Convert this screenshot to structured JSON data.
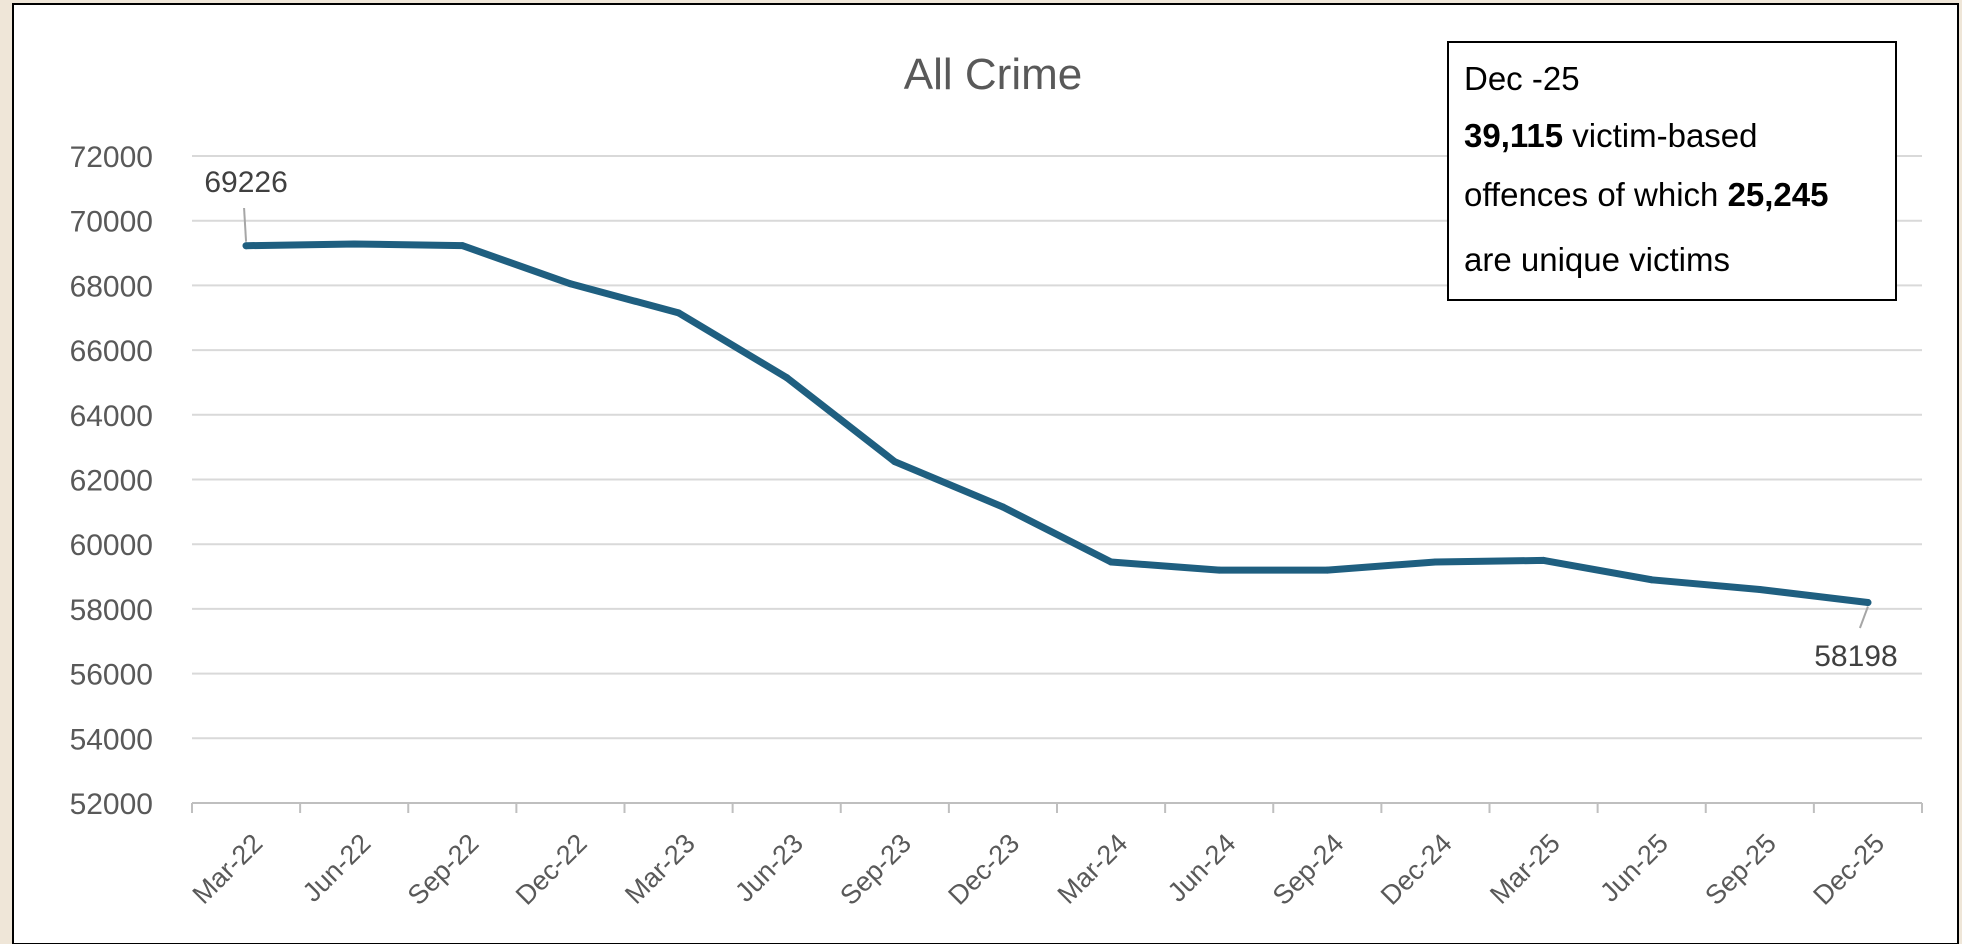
{
  "chart_data": {
    "type": "line",
    "title": "All Crime",
    "xlabel": "",
    "ylabel": "",
    "categories": [
      "Mar-22",
      "Jun-22",
      "Sep-22",
      "Dec-22",
      "Mar-23",
      "Jun-23",
      "Sep-23",
      "Dec-23",
      "Mar-24",
      "Jun-24",
      "Sep-24",
      "Dec-24",
      "Mar-25",
      "Jun-25",
      "Sep-25",
      "Dec-25"
    ],
    "series": [
      {
        "values": [
          69226,
          69280,
          69230,
          68050,
          67150,
          65150,
          62550,
          61150,
          59450,
          59200,
          59200,
          59450,
          59500,
          58900,
          58600,
          58198
        ],
        "color": "#1f5f80"
      }
    ],
    "ylim": [
      52000,
      72000
    ],
    "yticks": [
      52000,
      54000,
      56000,
      58000,
      60000,
      62000,
      64000,
      66000,
      68000,
      70000,
      72000
    ],
    "grid": true,
    "legend": "none",
    "data_labels": [
      {
        "index": 0,
        "text": "69226"
      },
      {
        "index": 15,
        "text": "58198"
      }
    ],
    "annotation": {
      "line1": "Dec -25",
      "line2_bold": "39,115",
      "line2_rest": " victim-based",
      "line3_pre": "offences of which ",
      "line3_bold": "25,245",
      "line4": "are unique victims"
    }
  }
}
